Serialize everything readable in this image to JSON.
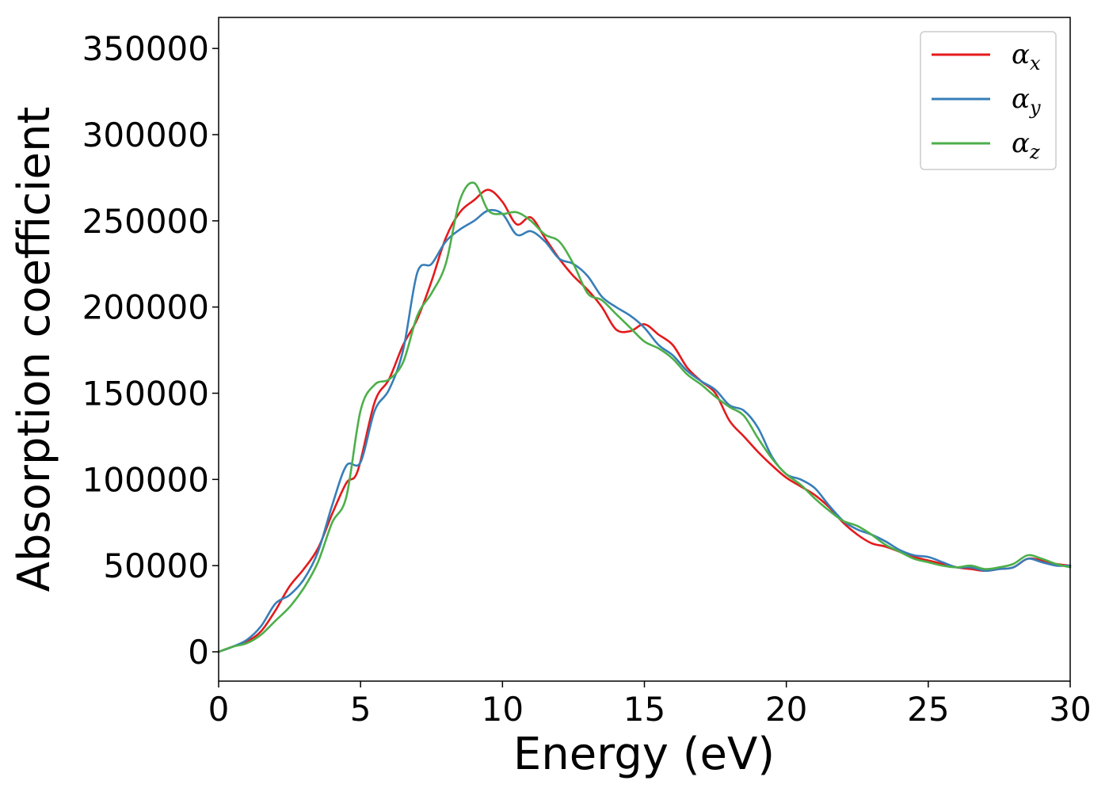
{
  "chart_data": {
    "type": "line",
    "title": "",
    "xlabel": "Energy (eV)",
    "ylabel": "Absorption coefficient",
    "xlim": [
      0,
      30
    ],
    "ylim": [
      -17000,
      368000
    ],
    "xticks": [
      0,
      5,
      10,
      15,
      20,
      25,
      30
    ],
    "yticks": [
      0,
      50000,
      100000,
      150000,
      200000,
      250000,
      300000,
      350000
    ],
    "grid": false,
    "legend_position": "top-right",
    "series": [
      {
        "name": "αx",
        "symbol": "α",
        "subscript": "x",
        "color": "#e41a1c",
        "x": [
          0,
          0.5,
          1,
          1.5,
          2,
          2.5,
          3,
          3.5,
          4,
          4.5,
          4.9,
          5.5,
          6,
          6.5,
          7,
          7.5,
          8,
          8.5,
          9,
          9.5,
          10,
          10.5,
          11,
          11.5,
          12,
          12.5,
          13,
          13.5,
          14,
          14.5,
          15,
          15.5,
          16,
          16.5,
          17,
          17.5,
          18,
          18.5,
          19,
          19.5,
          20,
          20.5,
          21,
          21.5,
          22,
          22.5,
          23,
          23.5,
          24,
          24.5,
          25,
          25.5,
          26,
          26.5,
          27,
          27.5,
          28,
          28.5,
          29,
          29.5,
          30
        ],
        "values": [
          0,
          3000,
          6000,
          12000,
          24000,
          38000,
          48000,
          60000,
          80000,
          98000,
          105000,
          145000,
          158000,
          178000,
          193000,
          215000,
          240000,
          255000,
          262000,
          268000,
          261000,
          248000,
          252000,
          240000,
          228000,
          218000,
          210000,
          200000,
          187000,
          186000,
          190000,
          184000,
          178000,
          165000,
          157000,
          150000,
          134000,
          125000,
          116000,
          108000,
          101000,
          96000,
          91000,
          84000,
          75000,
          68000,
          63000,
          61000,
          58000,
          55000,
          53000,
          51000,
          49000,
          48000,
          47000,
          48000,
          49000,
          54000,
          53000,
          51000,
          50000
        ]
      },
      {
        "name": "αy",
        "symbol": "α",
        "subscript": "y",
        "color": "#377eb8",
        "x": [
          0,
          0.5,
          1,
          1.5,
          2,
          2.5,
          3,
          3.5,
          4,
          4.5,
          5,
          5.5,
          6,
          6.5,
          7,
          7.5,
          8,
          8.5,
          9,
          9.5,
          10,
          10.5,
          11,
          11.5,
          12,
          12.5,
          13,
          13.5,
          14,
          14.5,
          15,
          15.5,
          16,
          16.5,
          17,
          17.5,
          18,
          18.5,
          19,
          19.5,
          20,
          20.5,
          21,
          21.5,
          22,
          22.5,
          23,
          23.5,
          24,
          24.5,
          25,
          25.5,
          26,
          26.5,
          27,
          27.5,
          28,
          28.5,
          29,
          29.5,
          30
        ],
        "values": [
          0,
          3000,
          7000,
          15000,
          28000,
          33000,
          42000,
          58000,
          85000,
          108000,
          110000,
          140000,
          152000,
          175000,
          220000,
          225000,
          238000,
          245000,
          250000,
          256000,
          254000,
          242000,
          244000,
          238000,
          228000,
          225000,
          218000,
          206000,
          200000,
          195000,
          188000,
          178000,
          172000,
          163000,
          157000,
          152000,
          143000,
          140000,
          130000,
          113000,
          103000,
          100000,
          95000,
          85000,
          76000,
          71000,
          68000,
          64000,
          59000,
          56000,
          55000,
          52000,
          49000,
          49000,
          47000,
          48000,
          49000,
          54000,
          52000,
          50000,
          50000
        ]
      },
      {
        "name": "αz",
        "symbol": "α",
        "subscript": "z",
        "color": "#4daf4a",
        "x": [
          0,
          0.5,
          1,
          1.5,
          2,
          2.5,
          3,
          3.5,
          4,
          4.5,
          5,
          5.5,
          6,
          6.5,
          7,
          7.5,
          8,
          8.5,
          9,
          9.5,
          10,
          10.5,
          11,
          11.5,
          12,
          12.5,
          13,
          13.5,
          14,
          14.5,
          15,
          15.5,
          16,
          16.5,
          17,
          17.5,
          18,
          18.5,
          19,
          19.5,
          20,
          20.5,
          21,
          21.5,
          22,
          22.5,
          23,
          23.5,
          24,
          24.5,
          25,
          25.5,
          26,
          26.5,
          27,
          27.5,
          28,
          28.5,
          29,
          29.5,
          30
        ],
        "values": [
          0,
          3000,
          5000,
          10000,
          18000,
          26000,
          37000,
          52000,
          75000,
          90000,
          140000,
          155000,
          158000,
          168000,
          195000,
          208000,
          225000,
          262000,
          272000,
          256000,
          254000,
          255000,
          250000,
          242000,
          238000,
          225000,
          208000,
          204000,
          196000,
          188000,
          180000,
          176000,
          170000,
          161000,
          155000,
          148000,
          142000,
          137000,
          124000,
          112000,
          103000,
          97000,
          89000,
          82000,
          76000,
          73000,
          68000,
          62000,
          58000,
          54000,
          52000,
          50000,
          49000,
          50000,
          48000,
          49000,
          51000,
          56000,
          54000,
          51000,
          49000
        ]
      }
    ]
  }
}
